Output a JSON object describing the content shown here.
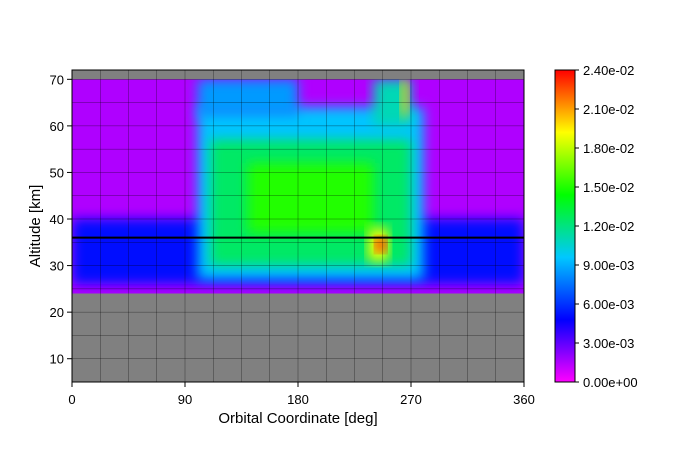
{
  "chart_data": {
    "type": "heatmap",
    "title": "",
    "xlabel": "Orbital Coordinate [deg]",
    "ylabel": "Altitude [km]",
    "xlim": [
      0,
      360
    ],
    "ylim": [
      5,
      72
    ],
    "xticks": [
      0,
      90,
      180,
      270,
      360
    ],
    "yticks": [
      10,
      20,
      30,
      40,
      50,
      60,
      70
    ],
    "grid": true,
    "background": "#808080",
    "horizontal_line": {
      "y": 36,
      "color": "#000000"
    },
    "colorbar": {
      "min": 0.0,
      "max": 0.024,
      "ticks": [
        "0.00e+00",
        "3.00e-03",
        "6.00e-03",
        "9.00e-03",
        "1.20e-02",
        "1.50e-02",
        "1.80e-02",
        "2.10e-02",
        "2.40e-02"
      ],
      "colors": [
        "#ff00ff",
        "#0000ff",
        "#00c8ff",
        "#00ff00",
        "#ffff00",
        "#ff0000"
      ]
    },
    "data_extent": {
      "x": [
        0,
        360
      ],
      "y": [
        24,
        70
      ]
    },
    "regions": [
      {
        "x": [
          0,
          360
        ],
        "y": [
          24,
          70
        ],
        "value": 0.0015
      },
      {
        "x": [
          0,
          360
        ],
        "y": [
          26,
          40
        ],
        "value": 0.005
      },
      {
        "x": [
          100,
          280
        ],
        "y": [
          27,
          64
        ],
        "value": 0.0095
      },
      {
        "x": [
          110,
          270
        ],
        "y": [
          30,
          57
        ],
        "value": 0.0125
      },
      {
        "x": [
          140,
          240
        ],
        "y": [
          37,
          52
        ],
        "value": 0.015
      },
      {
        "x": [
          100,
          180
        ],
        "y": [
          62,
          70
        ],
        "value": 0.0085
      },
      {
        "x": [
          240,
          270
        ],
        "y": [
          60,
          70
        ],
        "value": 0.011
      },
      {
        "x": [
          236,
          252
        ],
        "y": [
          31,
          38
        ],
        "value": 0.019
      },
      {
        "x": [
          242,
          250
        ],
        "y": [
          33,
          36
        ],
        "value": 0.024
      },
      {
        "x": [
          262,
          268
        ],
        "y": [
          62,
          70
        ],
        "value": 0.02
      }
    ]
  }
}
